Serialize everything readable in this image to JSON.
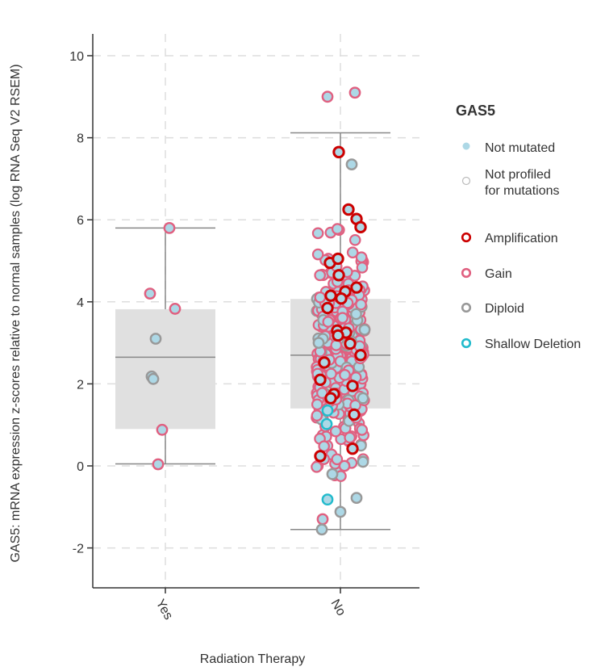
{
  "chart_data": {
    "type": "scatter",
    "subtype": "box-with-jitter",
    "xlabel": "Radiation Therapy",
    "ylabel": "GAS5: mRNA expression z-scores relative to normal samples (log RNA Seq V2 RSEM)",
    "ylim": [
      -3,
      10.5
    ],
    "yticks": [
      -2,
      0,
      2,
      4,
      6,
      8,
      10
    ],
    "categories": [
      "Yes",
      "No"
    ],
    "grid": true,
    "legend_position": "right",
    "legend": {
      "title": "GAS5",
      "mutation_items": [
        {
          "label": "Not mutated",
          "fill": "#add8e6"
        },
        {
          "label_lines": [
            "Not profiled",
            "for mutations"
          ],
          "fill": "#ffffff",
          "stroke": "#bbbbbb"
        }
      ],
      "cna_items": [
        {
          "label": "Amplification",
          "color": "#cc0000"
        },
        {
          "label": "Gain",
          "color": "#e06080"
        },
        {
          "label": "Diploid",
          "color": "#999999"
        },
        {
          "label": "Shallow Deletion",
          "color": "#22bbcc"
        }
      ]
    },
    "colors": {
      "box_fill": "#e0e0e0",
      "whisker": "#888888",
      "point_fill": "#add8e6",
      "gain": "#e06080",
      "amp": "#cc0000",
      "diploid": "#999999",
      "shallow": "#22bbcc"
    },
    "boxes": [
      {
        "category": "Yes",
        "min": 0.05,
        "q1": 0.9,
        "median": 2.65,
        "q3": 3.82,
        "max": 5.8
      },
      {
        "category": "No",
        "min": -1.55,
        "q1": 1.4,
        "median": 2.7,
        "q3": 4.07,
        "max": 8.12
      }
    ],
    "points_yes": [
      {
        "x": 0.05,
        "y": 5.8,
        "cna": "gain"
      },
      {
        "x": -0.19,
        "y": 4.2,
        "cna": "gain"
      },
      {
        "x": 0.12,
        "y": 3.83,
        "cna": "gain"
      },
      {
        "x": -0.12,
        "y": 3.1,
        "cna": "diploid"
      },
      {
        "x": -0.17,
        "y": 2.18,
        "cna": "diploid"
      },
      {
        "x": -0.15,
        "y": 2.12,
        "cna": "diploid"
      },
      {
        "x": -0.04,
        "y": 0.88,
        "cna": "gain"
      },
      {
        "x": -0.09,
        "y": 0.04,
        "cna": "gain"
      }
    ],
    "points_no_highlight": [
      {
        "x": 0.18,
        "y": 9.1,
        "cna": "gain"
      },
      {
        "x": -0.16,
        "y": 9.0,
        "cna": "gain"
      },
      {
        "x": -0.02,
        "y": 7.65,
        "cna": "amp"
      },
      {
        "x": 0.1,
        "y": 6.25,
        "cna": "amp"
      },
      {
        "x": 0.2,
        "y": 6.02,
        "cna": "amp"
      },
      {
        "x": 0.25,
        "y": 5.82,
        "cna": "amp"
      },
      {
        "x": -0.13,
        "y": 4.95,
        "cna": "amp"
      },
      {
        "x": -0.03,
        "y": 5.05,
        "cna": "amp"
      },
      {
        "x": -0.02,
        "y": 4.65,
        "cna": "amp"
      },
      {
        "x": 0.2,
        "y": 4.35,
        "cna": "amp"
      },
      {
        "x": 0.06,
        "y": 4.25,
        "cna": "amp"
      },
      {
        "x": -0.12,
        "y": 4.15,
        "cna": "amp"
      },
      {
        "x": 0.01,
        "y": 4.08,
        "cna": "amp"
      },
      {
        "x": -0.16,
        "y": 3.85,
        "cna": "amp"
      },
      {
        "x": -0.04,
        "y": 3.3,
        "cna": "amp"
      },
      {
        "x": 0.07,
        "y": 3.25,
        "cna": "amp"
      },
      {
        "x": -0.03,
        "y": 3.18,
        "cna": "amp"
      },
      {
        "x": 0.12,
        "y": 2.98,
        "cna": "amp"
      },
      {
        "x": 0.25,
        "y": 2.7,
        "cna": "amp"
      },
      {
        "x": -0.2,
        "y": 2.52,
        "cna": "amp"
      },
      {
        "x": -0.25,
        "y": 2.1,
        "cna": "amp"
      },
      {
        "x": 0.15,
        "y": 1.95,
        "cna": "amp"
      },
      {
        "x": -0.08,
        "y": 1.75,
        "cna": "amp"
      },
      {
        "x": -0.12,
        "y": 1.65,
        "cna": "amp"
      },
      {
        "x": 0.17,
        "y": 1.25,
        "cna": "amp"
      },
      {
        "x": 0.15,
        "y": 0.42,
        "cna": "amp"
      },
      {
        "x": -0.25,
        "y": 0.24,
        "cna": "amp"
      },
      {
        "x": -0.16,
        "y": 1.35,
        "cna": "shallow"
      },
      {
        "x": -0.17,
        "y": 1.02,
        "cna": "shallow"
      },
      {
        "x": -0.16,
        "y": -0.82,
        "cna": "shallow"
      },
      {
        "x": -0.22,
        "y": -1.3,
        "cna": "gain"
      },
      {
        "x": -0.23,
        "y": -1.55,
        "cna": "diploid"
      },
      {
        "x": 0.0,
        "y": -1.12,
        "cna": "diploid"
      },
      {
        "x": 0.2,
        "y": -0.78,
        "cna": "diploid"
      },
      {
        "x": 0.28,
        "y": 0.1,
        "cna": "diploid"
      },
      {
        "x": 0.28,
        "y": 1.65,
        "cna": "diploid"
      },
      {
        "x": 0.3,
        "y": 3.32,
        "cna": "diploid"
      },
      {
        "x": 0.14,
        "y": 7.35,
        "cna": "diploid"
      },
      {
        "x": -0.27,
        "y": 3.0,
        "cna": "diploid"
      },
      {
        "x": 0.05,
        "y": 0.0,
        "cna": "gain"
      },
      {
        "x": -0.1,
        "y": -0.2,
        "cna": "diploid"
      }
    ]
  }
}
